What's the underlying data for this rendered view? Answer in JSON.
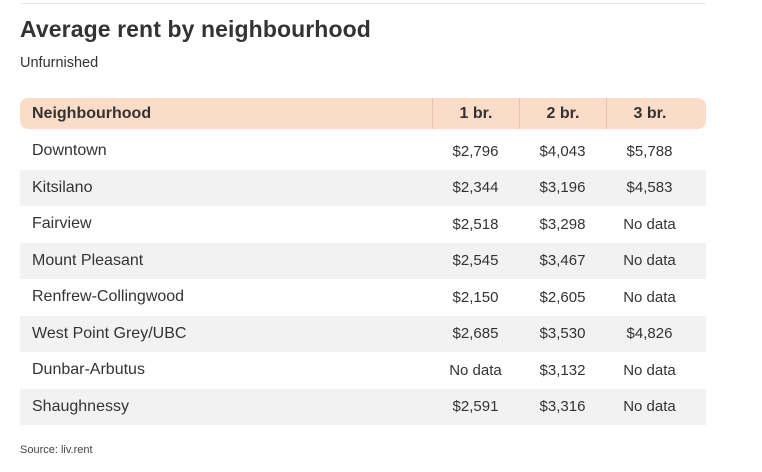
{
  "title": "Average rent by neighbourhood",
  "subtitle": "Unfurnished",
  "source": "Source: liv.rent",
  "header_color": "#fbdcc8",
  "stripe_color": "#f2f2f2",
  "chart_data": {
    "type": "table",
    "title": "Average rent by neighbourhood",
    "subtitle": "Unfurnished",
    "columns": [
      "Neighbourhood",
      "1 br.",
      "2 br.",
      "3 br."
    ],
    "rows": [
      [
        "Downtown",
        "$2,796",
        "$4,043",
        "$5,788"
      ],
      [
        "Kitsilano",
        "$2,344",
        "$3,196",
        "$4,583"
      ],
      [
        "Fairview",
        "$2,518",
        "$3,298",
        "No data"
      ],
      [
        "Mount Pleasant",
        "$2,545",
        "$3,467",
        "No data"
      ],
      [
        "Renfrew-Collingwood",
        "$2,150",
        "$2,605",
        "No data"
      ],
      [
        "West Point Grey/UBC",
        "$2,685",
        "$3,530",
        "$4,826"
      ],
      [
        "Dunbar-Arbutus",
        "No data",
        "$3,132",
        "No data"
      ],
      [
        "Shaughnessy",
        "$2,591",
        "$3,316",
        "No data"
      ]
    ],
    "source": "Source: liv.rent"
  }
}
